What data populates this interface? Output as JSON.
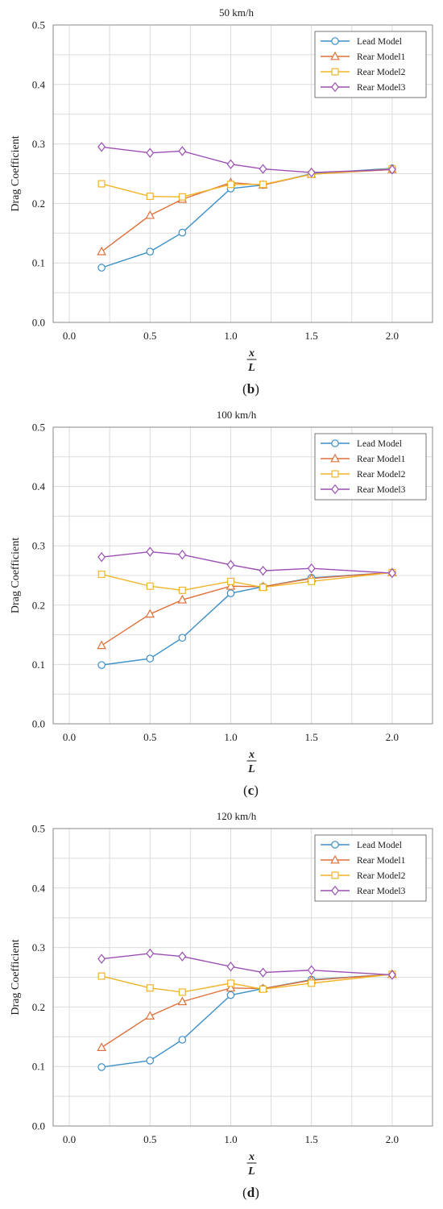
{
  "chart_data": [
    {
      "type": "line",
      "panel_label": "(b)",
      "panel_letter": "b",
      "title": "50 km/h",
      "ylabel": "Drag Coefficient",
      "xlabel_numerator": "x",
      "xlabel_denominator": "L",
      "xlim": [
        -0.1,
        2.25
      ],
      "ylim": [
        0,
        0.5
      ],
      "xticks": [
        "0.0",
        "0.5",
        "1.0",
        "1.5",
        "2.0"
      ],
      "yticks": [
        "0.0",
        "0.1",
        "0.2",
        "0.3",
        "0.4",
        "0.5"
      ],
      "grid": true,
      "legend_position": "top-right",
      "x": [
        0.2,
        0.5,
        0.7,
        1.0,
        1.2,
        1.5,
        2.0
      ],
      "series": [
        {
          "name": "Lead Model",
          "color": "#3a8fc8",
          "marker": "circle",
          "values": [
            0.092,
            0.119,
            0.151,
            0.225,
            0.231,
            0.25,
            0.259
          ]
        },
        {
          "name": "Rear Model1",
          "color": "#e0703a",
          "marker": "triangle",
          "values": [
            0.119,
            0.18,
            0.207,
            0.235,
            0.231,
            0.249,
            0.257
          ]
        },
        {
          "name": "Rear Model2",
          "color": "#f0b429",
          "marker": "square",
          "values": [
            0.233,
            0.212,
            0.211,
            0.232,
            0.232,
            0.249,
            0.258
          ]
        },
        {
          "name": "Rear Model3",
          "color": "#9b4fb3",
          "marker": "diamond",
          "values": [
            0.295,
            0.285,
            0.288,
            0.266,
            0.258,
            0.252,
            0.257
          ]
        }
      ]
    },
    {
      "type": "line",
      "panel_label": "(c)",
      "panel_letter": "c",
      "title": "100 km/h",
      "ylabel": "Drag Coefficient",
      "xlabel_numerator": "x",
      "xlabel_denominator": "L",
      "xlim": [
        -0.1,
        2.25
      ],
      "ylim": [
        0,
        0.5
      ],
      "xticks": [
        "0.0",
        "0.5",
        "1.0",
        "1.5",
        "2.0"
      ],
      "yticks": [
        "0.0",
        "0.1",
        "0.2",
        "0.3",
        "0.4",
        "0.5"
      ],
      "grid": true,
      "legend_position": "top-right",
      "x": [
        0.2,
        0.5,
        0.7,
        1.0,
        1.2,
        1.5,
        2.0
      ],
      "series": [
        {
          "name": "Lead Model",
          "color": "#3a8fc8",
          "marker": "circle",
          "values": [
            0.099,
            0.11,
            0.145,
            0.22,
            0.231,
            0.246,
            0.255
          ]
        },
        {
          "name": "Rear Model1",
          "color": "#e0703a",
          "marker": "triangle",
          "values": [
            0.132,
            0.185,
            0.209,
            0.232,
            0.231,
            0.245,
            0.255
          ]
        },
        {
          "name": "Rear Model2",
          "color": "#f0b429",
          "marker": "square",
          "values": [
            0.252,
            0.232,
            0.225,
            0.24,
            0.23,
            0.24,
            0.255
          ]
        },
        {
          "name": "Rear Model3",
          "color": "#9b4fb3",
          "marker": "diamond",
          "values": [
            0.281,
            0.29,
            0.285,
            0.268,
            0.258,
            0.262,
            0.254
          ]
        }
      ]
    },
    {
      "type": "line",
      "panel_label": "(d)",
      "panel_letter": "d",
      "title": "120 km/h",
      "ylabel": "Drag Coefficient",
      "xlabel_numerator": "x",
      "xlabel_denominator": "L",
      "xlim": [
        -0.1,
        2.25
      ],
      "ylim": [
        0,
        0.5
      ],
      "xticks": [
        "0.0",
        "0.5",
        "1.0",
        "1.5",
        "2.0"
      ],
      "yticks": [
        "0.0",
        "0.1",
        "0.2",
        "0.3",
        "0.4",
        "0.5"
      ],
      "grid": true,
      "legend_position": "top-right",
      "x": [
        0.2,
        0.5,
        0.7,
        1.0,
        1.2,
        1.5,
        2.0
      ],
      "series": [
        {
          "name": "Lead Model",
          "color": "#3a8fc8",
          "marker": "circle",
          "values": [
            0.099,
            0.11,
            0.145,
            0.22,
            0.231,
            0.246,
            0.255
          ]
        },
        {
          "name": "Rear Model1",
          "color": "#e0703a",
          "marker": "triangle",
          "values": [
            0.132,
            0.185,
            0.209,
            0.232,
            0.231,
            0.245,
            0.255
          ]
        },
        {
          "name": "Rear Model2",
          "color": "#f0b429",
          "marker": "square",
          "values": [
            0.252,
            0.232,
            0.225,
            0.24,
            0.23,
            0.24,
            0.255
          ]
        },
        {
          "name": "Rear Model3",
          "color": "#9b4fb3",
          "marker": "diamond",
          "values": [
            0.281,
            0.29,
            0.285,
            0.268,
            0.258,
            0.262,
            0.254
          ]
        }
      ]
    }
  ]
}
